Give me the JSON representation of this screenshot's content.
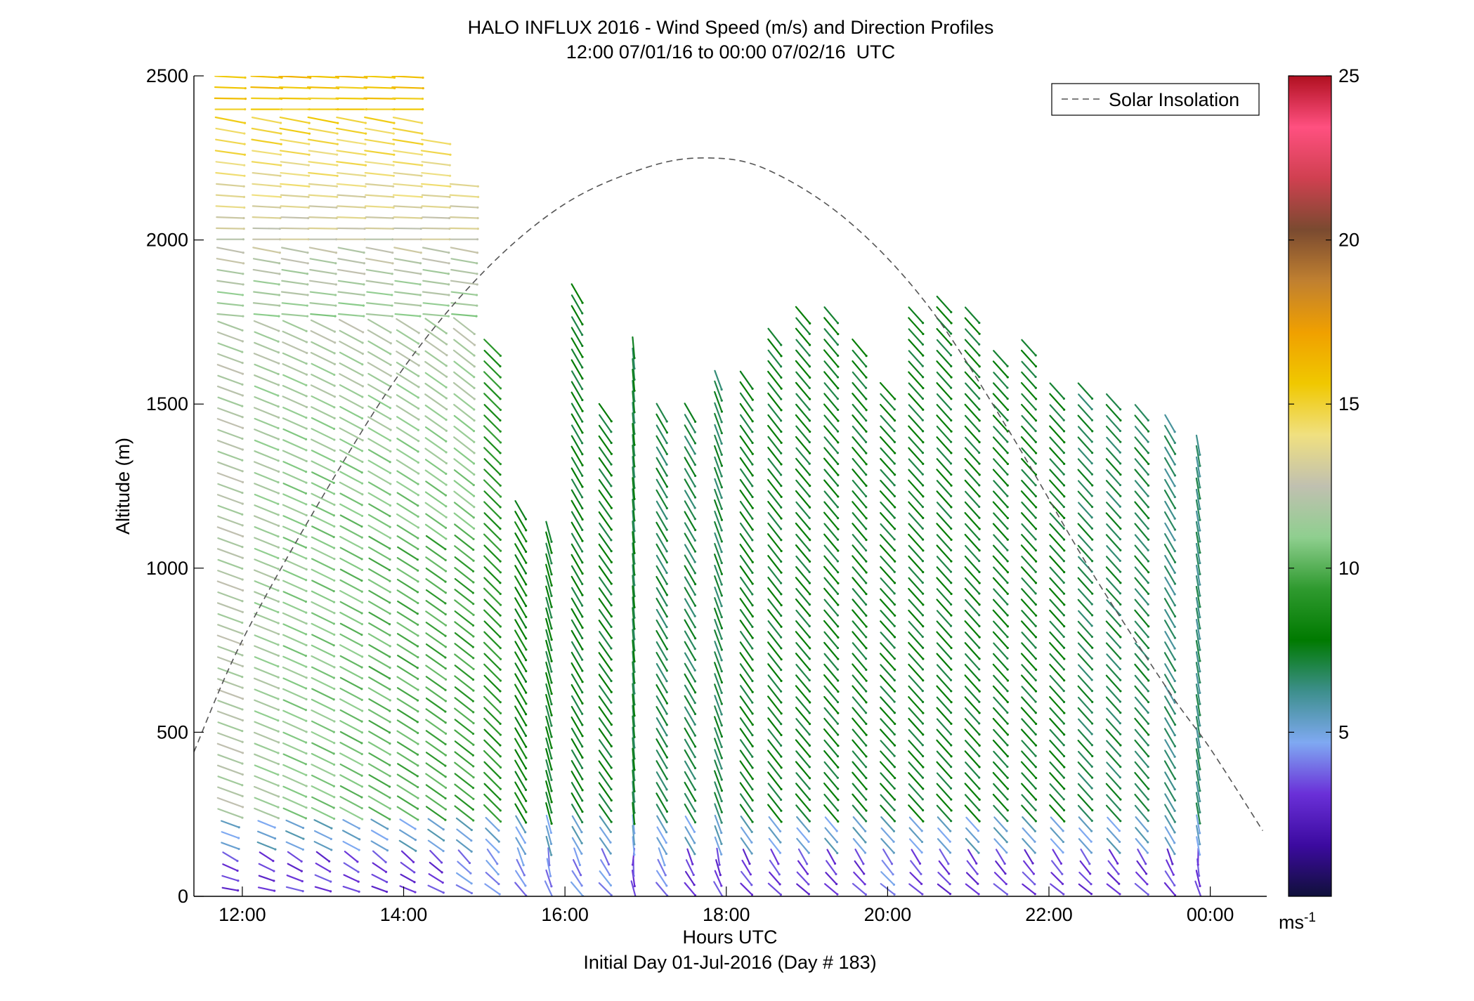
{
  "chart_data": {
    "type": "scatter",
    "title": "HALO INFLUX 2016 - Wind Speed (m/s) and Direction Profiles",
    "subtitle": "12:00 07/01/16 to 00:00 07/02/16  UTC",
    "xlabel": "Hours UTC",
    "xlabel2": "Initial Day 01-Jul-2016 (Day # 183)",
    "ylabel": "Altitude (m)",
    "xlim": [
      11.4,
      24.7
    ],
    "ylim": [
      0,
      2500
    ],
    "x_ticks": [
      12,
      14,
      16,
      18,
      20,
      22,
      24
    ],
    "x_tick_labels": [
      "12:00",
      "14:00",
      "16:00",
      "18:00",
      "20:00",
      "22:00",
      "00:00"
    ],
    "y_ticks": [
      0,
      500,
      1000,
      1500,
      2000,
      2500
    ],
    "y_tick_labels": [
      "0",
      "500",
      "1000",
      "1500",
      "2000",
      "2500"
    ],
    "legend": {
      "entries": [
        "Solar Insolation"
      ],
      "placement": "top-right"
    },
    "colorbar": {
      "range": [
        0,
        25
      ],
      "ticks": [
        5,
        10,
        15,
        20,
        25
      ],
      "tick_labels": [
        "5",
        "10",
        "15",
        "20",
        "25"
      ],
      "unit_label": "ms",
      "unit_exponent": "-1",
      "colors": [
        "#10103a",
        "#3c0aa0",
        "#6a30d8",
        "#7fa9f2",
        "#3d8f8c",
        "#007a00",
        "#2f9a2f",
        "#8fcf8f",
        "#c0c0b0",
        "#f0e080",
        "#f0c800",
        "#f0a000",
        "#c08030",
        "#7a4a30",
        "#d04050",
        "#ff5080",
        "#b01020"
      ]
    },
    "solar_insolation": {
      "style": "dashed",
      "color": "#555555",
      "x": [
        11.4,
        12,
        13,
        14,
        15,
        16,
        17,
        17.75,
        18.5,
        19.5,
        20.5,
        21.5,
        22.5,
        23.5,
        24,
        24.65
      ],
      "y": [
        440,
        780,
        1220,
        1610,
        1905,
        2110,
        2220,
        2250,
        2215,
        2060,
        1800,
        1420,
        1000,
        620,
        450,
        200
      ]
    },
    "profiles": [
      {
        "time": 11.85,
        "top": 2500,
        "speed": 12.0,
        "dir": 290,
        "low_color": "purple"
      },
      {
        "time": 12.3,
        "top": 2500,
        "speed": 11.5,
        "dir": 292,
        "low_color": "purple"
      },
      {
        "time": 12.65,
        "top": 2500,
        "speed": 11.0,
        "dir": 294,
        "low_color": "purple"
      },
      {
        "time": 13.0,
        "top": 2500,
        "speed": 10.8,
        "dir": 296,
        "low_color": "purple"
      },
      {
        "time": 13.35,
        "top": 2500,
        "speed": 10.5,
        "dir": 298,
        "low_color": "purple"
      },
      {
        "time": 13.7,
        "top": 2500,
        "speed": 10.2,
        "dir": 300,
        "low_color": "purple"
      },
      {
        "time": 14.05,
        "top": 2500,
        "speed": 10.0,
        "dir": 302,
        "low_color": "purple"
      },
      {
        "time": 14.4,
        "top": 2330,
        "speed": 9.8,
        "dir": 305,
        "low_color": "purple"
      },
      {
        "time": 14.75,
        "top": 2190,
        "speed": 9.5,
        "dir": 308,
        "low_color": "blue"
      },
      {
        "time": 15.1,
        "top": 1700,
        "speed": 9.0,
        "dir": 315,
        "low_color": "blue"
      },
      {
        "time": 15.45,
        "top": 1200,
        "speed": 8.0,
        "dir": 330,
        "low_color": "blue"
      },
      {
        "time": 15.8,
        "top": 1130,
        "speed": 7.5,
        "dir": 345,
        "low_color": "blue"
      },
      {
        "time": 16.15,
        "top": 1850,
        "speed": 7.5,
        "dir": 330,
        "low_color": "blue"
      },
      {
        "time": 16.5,
        "top": 1500,
        "speed": 7.5,
        "dir": 325,
        "low_color": "blue"
      },
      {
        "time": 16.85,
        "top": 1690,
        "speed": 7.2,
        "dir": 355,
        "low_color": "purple"
      },
      {
        "time": 17.2,
        "top": 1500,
        "speed": 7.0,
        "dir": 330,
        "low_color": "blue"
      },
      {
        "time": 17.55,
        "top": 1480,
        "speed": 7.0,
        "dir": 330,
        "low_color": "purple"
      },
      {
        "time": 17.9,
        "top": 1590,
        "speed": 7.0,
        "dir": 340,
        "low_color": "purple"
      },
      {
        "time": 18.25,
        "top": 1600,
        "speed": 7.5,
        "dir": 325,
        "low_color": "purple"
      },
      {
        "time": 18.6,
        "top": 1720,
        "speed": 7.5,
        "dir": 322,
        "low_color": "purple"
      },
      {
        "time": 18.95,
        "top": 1780,
        "speed": 7.5,
        "dir": 320,
        "low_color": "purple"
      },
      {
        "time": 19.3,
        "top": 1780,
        "speed": 7.5,
        "dir": 320,
        "low_color": "purple"
      },
      {
        "time": 19.65,
        "top": 1690,
        "speed": 7.5,
        "dir": 320,
        "low_color": "purple"
      },
      {
        "time": 20.0,
        "top": 1540,
        "speed": 7.5,
        "dir": 318,
        "low_color": "blue"
      },
      {
        "time": 20.35,
        "top": 1800,
        "speed": 7.5,
        "dir": 318,
        "low_color": "purple"
      },
      {
        "time": 20.7,
        "top": 1820,
        "speed": 7.5,
        "dir": 318,
        "low_color": "purple"
      },
      {
        "time": 21.05,
        "top": 1800,
        "speed": 7.5,
        "dir": 318,
        "low_color": "purple"
      },
      {
        "time": 21.4,
        "top": 1670,
        "speed": 7.5,
        "dir": 318,
        "low_color": "purple"
      },
      {
        "time": 21.75,
        "top": 1700,
        "speed": 7.5,
        "dir": 318,
        "low_color": "purple"
      },
      {
        "time": 22.1,
        "top": 1550,
        "speed": 7.5,
        "dir": 318,
        "low_color": "purple"
      },
      {
        "time": 22.45,
        "top": 1560,
        "speed": 7.0,
        "dir": 318,
        "low_color": "purple"
      },
      {
        "time": 22.8,
        "top": 1530,
        "speed": 7.0,
        "dir": 318,
        "low_color": "purple"
      },
      {
        "time": 23.15,
        "top": 1480,
        "speed": 7.0,
        "dir": 320,
        "low_color": "purple"
      },
      {
        "time": 23.5,
        "top": 1450,
        "speed": 6.5,
        "dir": 330,
        "low_color": "purple"
      },
      {
        "time": 23.85,
        "top": 1380,
        "speed": 6.5,
        "dir": 350,
        "low_color": "purple"
      }
    ],
    "profiles_note": "",
    "level_step_m": 33
  }
}
